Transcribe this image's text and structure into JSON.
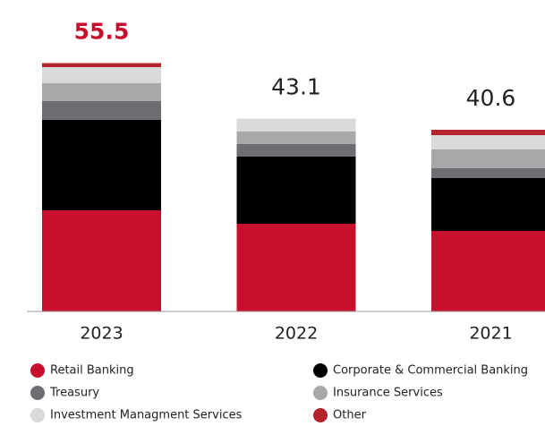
{
  "chart_data": {
    "type": "stacked_bar",
    "categories": [
      "2023",
      "2022",
      "2021"
    ],
    "totals": [
      55.5,
      43.1,
      40.6
    ],
    "series": [
      {
        "name": "Retail Banking",
        "color": "#c8102e",
        "values": [
          22.6,
          19.6,
          18.0
        ]
      },
      {
        "name": "Corporate & Commercial Banking",
        "color": "#000000",
        "values": [
          20.2,
          15.0,
          11.8
        ]
      },
      {
        "name": "Treasury",
        "color": "#6d6e71",
        "values": [
          4.2,
          2.8,
          2.2
        ]
      },
      {
        "name": "Insurance Services",
        "color": "#a7a8aa",
        "values": [
          4.0,
          2.8,
          4.2
        ]
      },
      {
        "name": "Investment Managment Services",
        "color": "#d9d9d9",
        "values": [
          3.6,
          2.9,
          3.2
        ]
      },
      {
        "name": "Other",
        "color": "#b5232d",
        "values": [
          0.9,
          0,
          1.2
        ]
      }
    ],
    "ylim": [
      0,
      60
    ]
  }
}
